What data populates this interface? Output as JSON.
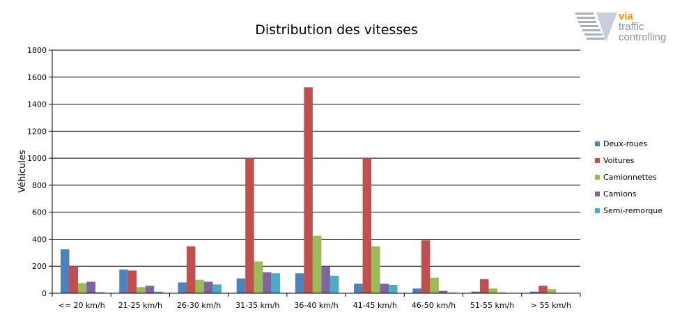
{
  "chart_data": {
    "type": "bar",
    "title": "Distribution des vitesses",
    "xlabel": "",
    "ylabel": "Véhicules",
    "ylim": [
      0,
      1800
    ],
    "ytick_step": 200,
    "grid": true,
    "legend_position": "right",
    "categories": [
      "<= 20 km/h",
      "21-25 km/h",
      "26-30 km/h",
      "31-35 km/h",
      "36-40 km/h",
      "41-45 km/h",
      "46-50 km/h",
      "51-55 km/h",
      "> 55 km/h"
    ],
    "series": [
      {
        "name": "Deux-roues",
        "color": "#4f81bd",
        "values": [
          325,
          175,
          80,
          110,
          148,
          70,
          35,
          12,
          12
        ]
      },
      {
        "name": "Voitures",
        "color": "#c0504d",
        "values": [
          200,
          168,
          348,
          1000,
          1525,
          1000,
          392,
          105,
          55
        ]
      },
      {
        "name": "Camionnettes",
        "color": "#9bbb59",
        "values": [
          75,
          45,
          100,
          235,
          425,
          348,
          115,
          35,
          30
        ]
      },
      {
        "name": "Camions",
        "color": "#8064a2",
        "values": [
          85,
          55,
          85,
          155,
          195,
          70,
          18,
          5,
          3
        ]
      },
      {
        "name": "Semi-remorque",
        "color": "#4bacc6",
        "values": [
          8,
          12,
          65,
          148,
          130,
          62,
          5,
          2,
          2
        ]
      }
    ]
  },
  "logo": {
    "via": "via",
    "line1": "traffic",
    "line2": "controlling"
  }
}
